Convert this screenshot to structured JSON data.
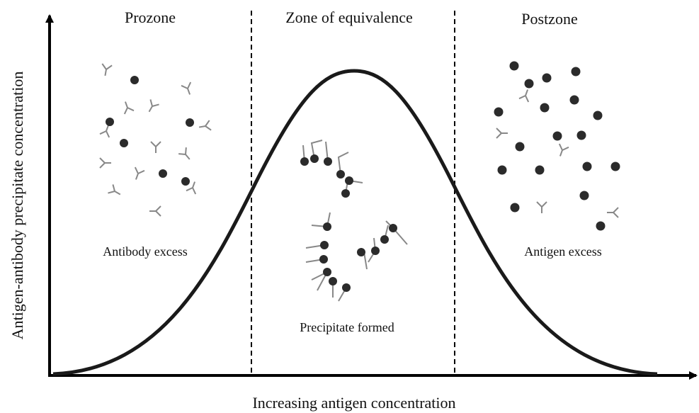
{
  "axes": {
    "x_label": "Increasing antigen concentration",
    "y_label": "Antigen-antibody precipitate concentration"
  },
  "zones": [
    {
      "label": "Prozone",
      "description": "Antibody excess"
    },
    {
      "label": "Zone of equivalence",
      "description": "Precipitate formed"
    },
    {
      "label": "Postzone",
      "description": "Antigen excess"
    }
  ]
}
